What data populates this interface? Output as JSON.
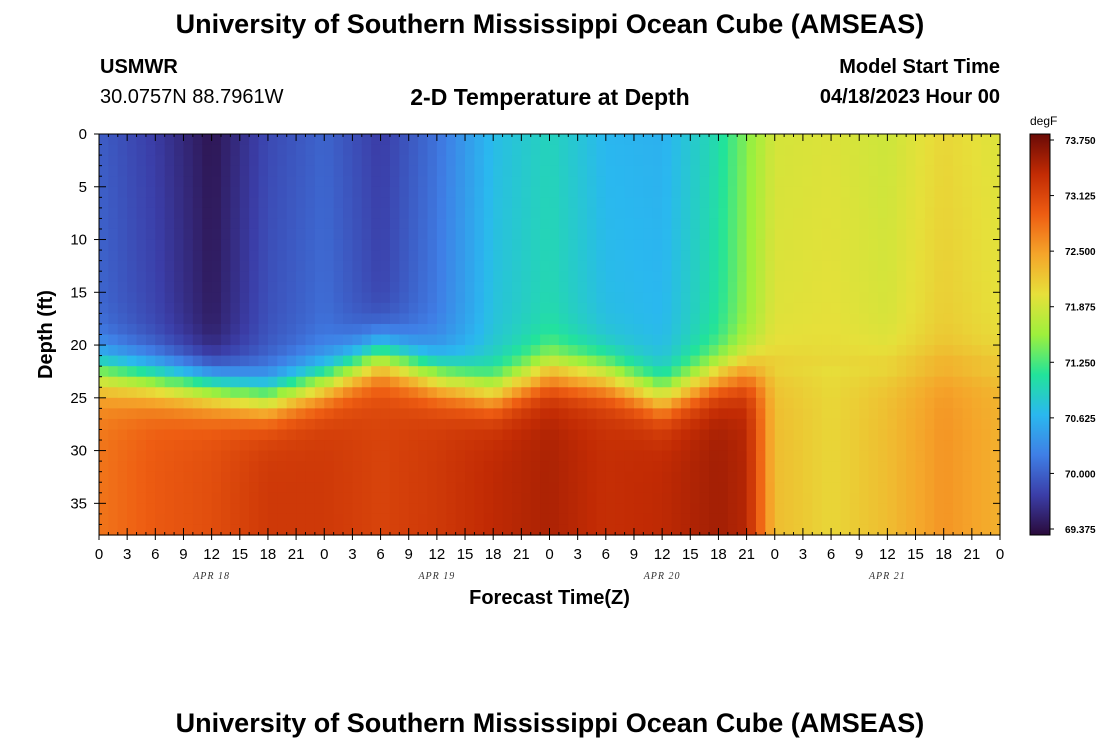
{
  "header": {
    "title": "University of Southern Mississippi Ocean Cube (AMSEAS)",
    "station": "USMWR",
    "coords": "30.0757N  88.7961W",
    "subtitle": "2-D Temperature at Depth",
    "model_start_label": "Model Start Time",
    "model_start_value": "04/18/2023 Hour 00"
  },
  "footer": {
    "title": "University of Southern Mississippi Ocean Cube (AMSEAS)"
  },
  "chart_data": {
    "type": "heatmap",
    "title": "2-D Temperature at Depth",
    "xlabel": "Forecast Time(Z)",
    "ylabel": "Depth (ft)",
    "x_tick_labels": [
      "0",
      "3",
      "6",
      "9",
      "12",
      "15",
      "18",
      "21",
      "0",
      "3",
      "6",
      "9",
      "12",
      "15",
      "18",
      "21",
      "0",
      "3",
      "6",
      "9",
      "12",
      "15",
      "18",
      "21",
      "0",
      "3",
      "6",
      "9",
      "12",
      "15",
      "18",
      "21",
      "0"
    ],
    "x_hours_range": [
      0,
      96
    ],
    "date_labels": [
      {
        "label": "APR 18",
        "hour": 12
      },
      {
        "label": "APR 19",
        "hour": 36
      },
      {
        "label": "APR 20",
        "hour": 60
      },
      {
        "label": "APR 21",
        "hour": 84
      }
    ],
    "y_ticks": [
      0,
      5,
      10,
      15,
      20,
      25,
      30,
      35
    ],
    "ylim": [
      0,
      38
    ],
    "colorbar": {
      "units": "degF",
      "ticks": [
        "73.750",
        "73.125",
        "72.500",
        "71.875",
        "71.250",
        "70.625",
        "70.000",
        "69.375"
      ],
      "range": [
        69.2,
        73.9
      ],
      "colors": [
        "#2a0a3a",
        "#3b3ea8",
        "#3f7fe6",
        "#2ab8ef",
        "#22e39a",
        "#9ef03c",
        "#e6e03a",
        "#f5a52a",
        "#ee5d12",
        "#c22b04",
        "#6a0a06"
      ]
    },
    "temperature_model": {
      "upper_layer": [
        {
          "hour": 0,
          "value": 69.9
        },
        {
          "hour": 6,
          "value": 69.65
        },
        {
          "hour": 12,
          "value": 69.3
        },
        {
          "hour": 18,
          "value": 69.75
        },
        {
          "hour": 24,
          "value": 69.95
        },
        {
          "hour": 30,
          "value": 69.65
        },
        {
          "hour": 36,
          "value": 70.05
        },
        {
          "hour": 42,
          "value": 70.65
        },
        {
          "hour": 48,
          "value": 70.9
        },
        {
          "hour": 54,
          "value": 70.6
        },
        {
          "hour": 60,
          "value": 70.55
        },
        {
          "hour": 66,
          "value": 71.0
        },
        {
          "hour": 72,
          "value": 71.9
        },
        {
          "hour": 78,
          "value": 71.95
        },
        {
          "hour": 84,
          "value": 71.85
        },
        {
          "hour": 90,
          "value": 72.1
        },
        {
          "hour": 96,
          "value": 71.95
        }
      ],
      "lower_layer": [
        {
          "hour": 0,
          "value": 72.8
        },
        {
          "hour": 6,
          "value": 73.0
        },
        {
          "hour": 12,
          "value": 73.1
        },
        {
          "hour": 18,
          "value": 73.3
        },
        {
          "hour": 24,
          "value": 73.3
        },
        {
          "hour": 30,
          "value": 73.2
        },
        {
          "hour": 36,
          "value": 73.3
        },
        {
          "hour": 42,
          "value": 73.45
        },
        {
          "hour": 48,
          "value": 73.55
        },
        {
          "hour": 54,
          "value": 73.4
        },
        {
          "hour": 60,
          "value": 73.45
        },
        {
          "hour": 66,
          "value": 73.6
        },
        {
          "hour": 69,
          "value": 73.5
        },
        {
          "hour": 72,
          "value": 72.3
        },
        {
          "hour": 78,
          "value": 72.1
        },
        {
          "hour": 84,
          "value": 72.3
        },
        {
          "hour": 90,
          "value": 72.6
        },
        {
          "hour": 96,
          "value": 72.4
        }
      ],
      "thermocline_depth_ft": [
        {
          "hour": 0,
          "value": 22.5
        },
        {
          "hour": 12,
          "value": 24.0
        },
        {
          "hour": 18,
          "value": 25.0
        },
        {
          "hour": 24,
          "value": 23.5
        },
        {
          "hour": 30,
          "value": 21.0
        },
        {
          "hour": 36,
          "value": 23.0
        },
        {
          "hour": 42,
          "value": 24.5
        },
        {
          "hour": 48,
          "value": 22.5
        },
        {
          "hour": 54,
          "value": 23.0
        },
        {
          "hour": 60,
          "value": 25.0
        },
        {
          "hour": 66,
          "value": 23.0
        },
        {
          "hour": 72,
          "value": 22.0
        },
        {
          "hour": 84,
          "value": 22.0
        },
        {
          "hour": 96,
          "value": 22.0
        }
      ]
    }
  }
}
